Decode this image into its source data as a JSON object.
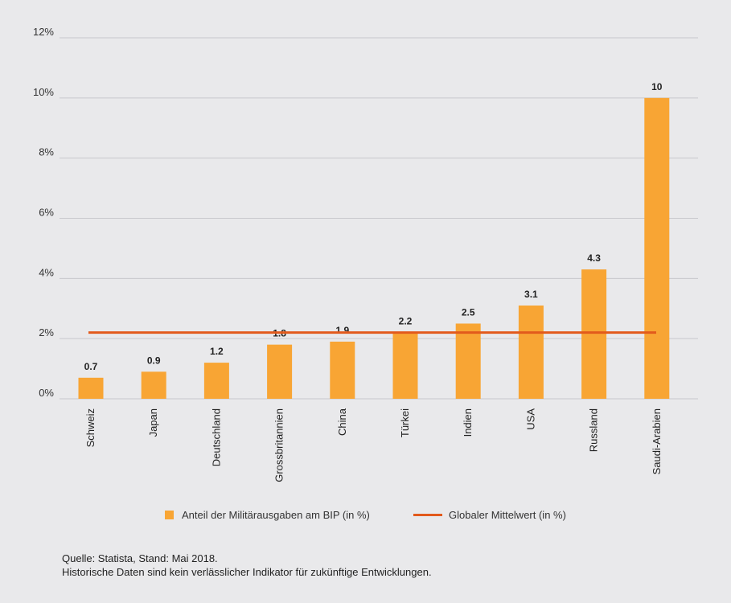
{
  "chart_data": {
    "type": "bar",
    "categories": [
      "Schweiz",
      "Japan",
      "Deutschland",
      "Grossbritannien",
      "China",
      "Türkei",
      "Indien",
      "USA",
      "Russland",
      "Saudi-Arabien"
    ],
    "values": [
      0.7,
      0.9,
      1.2,
      1.8,
      1.9,
      2.2,
      2.5,
      3.1,
      4.3,
      10
    ],
    "value_labels": [
      "0.7",
      "0.9",
      "1.2",
      "1.8",
      "1.9",
      "2.2",
      "2.5",
      "3.1",
      "4.3",
      "10"
    ],
    "reference_line": {
      "name": "Globaler Mittelwert (in %)",
      "value": 2.2
    },
    "series_name": "Anteil der Militärausgaben am BIP (in %)",
    "yticks": [
      0,
      2,
      4,
      6,
      8,
      10,
      12
    ],
    "ytick_labels": [
      "0%",
      "2%",
      "4%",
      "6%",
      "8%",
      "10%",
      "12%"
    ],
    "ylim": [
      0,
      12
    ],
    "grid": true,
    "legend_position": "bottom",
    "colors": {
      "bar": "#f8a534",
      "line": "#e25a1c",
      "grid": "#c8c8cc"
    }
  },
  "legend": {
    "bar_label": "Anteil der Militärausgaben am BIP (in %)",
    "line_label": "Globaler Mittelwert (in %)"
  },
  "footer": {
    "source": "Quelle: Statista, Stand: Mai 2018.",
    "disclaimer": "Historische Daten sind kein verlässlicher Indikator für zukünftige Entwicklungen."
  }
}
